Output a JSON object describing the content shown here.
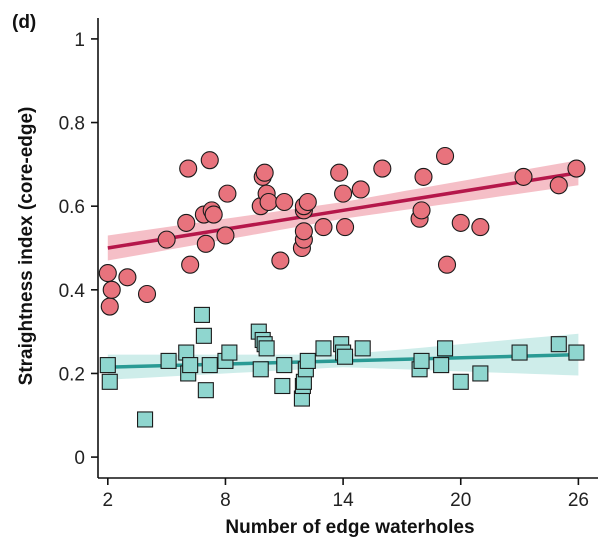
{
  "chart_data": {
    "type": "scatter",
    "panel_label": "(d)",
    "xlabel": "Number of edge waterholes",
    "ylabel": "Straightness index (core-edge)",
    "xlim": [
      1.5,
      27.0
    ],
    "ylim": [
      -0.05,
      1.05
    ],
    "x_ticks": [
      2,
      8,
      14,
      20,
      26
    ],
    "y_ticks": [
      0,
      0.2,
      0.4,
      0.6,
      0.8,
      1
    ],
    "y_tick_labels": [
      "0",
      "0.2",
      "0.4",
      "0.6",
      "0.8",
      "1"
    ],
    "grid": false,
    "series": [
      {
        "marker": "circle",
        "fill": "#e8737d",
        "stroke": "#1a1a1a",
        "line_color": "#b5174a",
        "band_color": "#f2aab4",
        "fit": {
          "x": [
            2,
            26
          ],
          "y": [
            0.5,
            0.68
          ]
        },
        "band_half_width": {
          "x": [
            2,
            14,
            26
          ],
          "y": [
            0.03,
            0.02,
            0.03
          ]
        },
        "points": [
          {
            "x": 2.0,
            "y": 0.44
          },
          {
            "x": 2.1,
            "y": 0.36
          },
          {
            "x": 2.2,
            "y": 0.4
          },
          {
            "x": 3.0,
            "y": 0.43
          },
          {
            "x": 4.0,
            "y": 0.39
          },
          {
            "x": 5.0,
            "y": 0.52
          },
          {
            "x": 6.0,
            "y": 0.56
          },
          {
            "x": 6.1,
            "y": 0.69
          },
          {
            "x": 6.2,
            "y": 0.46
          },
          {
            "x": 6.9,
            "y": 0.58
          },
          {
            "x": 7.0,
            "y": 0.51
          },
          {
            "x": 7.2,
            "y": 0.71
          },
          {
            "x": 7.3,
            "y": 0.59
          },
          {
            "x": 7.4,
            "y": 0.58
          },
          {
            "x": 8.0,
            "y": 0.53
          },
          {
            "x": 8.1,
            "y": 0.63
          },
          {
            "x": 9.8,
            "y": 0.6
          },
          {
            "x": 9.9,
            "y": 0.67
          },
          {
            "x": 10.0,
            "y": 0.68
          },
          {
            "x": 10.1,
            "y": 0.63
          },
          {
            "x": 10.2,
            "y": 0.61
          },
          {
            "x": 10.8,
            "y": 0.47
          },
          {
            "x": 11.0,
            "y": 0.61
          },
          {
            "x": 11.9,
            "y": 0.5
          },
          {
            "x": 12.0,
            "y": 0.52
          },
          {
            "x": 12.0,
            "y": 0.54
          },
          {
            "x": 12.0,
            "y": 0.59
          },
          {
            "x": 12.0,
            "y": 0.6
          },
          {
            "x": 12.2,
            "y": 0.61
          },
          {
            "x": 13.0,
            "y": 0.55
          },
          {
            "x": 13.8,
            "y": 0.68
          },
          {
            "x": 14.0,
            "y": 0.63
          },
          {
            "x": 14.1,
            "y": 0.55
          },
          {
            "x": 14.9,
            "y": 0.64
          },
          {
            "x": 16.0,
            "y": 0.69
          },
          {
            "x": 17.9,
            "y": 0.57
          },
          {
            "x": 18.0,
            "y": 0.59
          },
          {
            "x": 18.1,
            "y": 0.67
          },
          {
            "x": 19.2,
            "y": 0.72
          },
          {
            "x": 19.3,
            "y": 0.46
          },
          {
            "x": 20.0,
            "y": 0.56
          },
          {
            "x": 21.0,
            "y": 0.55
          },
          {
            "x": 23.2,
            "y": 0.67
          },
          {
            "x": 25.0,
            "y": 0.65
          },
          {
            "x": 25.9,
            "y": 0.69
          }
        ]
      },
      {
        "marker": "square",
        "fill": "#8fd6cf",
        "stroke": "#1a1a1a",
        "line_color": "#2a9a94",
        "band_color": "#bde7e3",
        "fit": {
          "x": [
            2,
            26
          ],
          "y": [
            0.215,
            0.245
          ]
        },
        "band_half_width": {
          "x": [
            2,
            14,
            26
          ],
          "y": [
            0.03,
            0.015,
            0.05
          ]
        },
        "points": [
          {
            "x": 2.0,
            "y": 0.22
          },
          {
            "x": 2.1,
            "y": 0.18
          },
          {
            "x": 3.9,
            "y": 0.09
          },
          {
            "x": 5.1,
            "y": 0.23
          },
          {
            "x": 6.0,
            "y": 0.25
          },
          {
            "x": 6.1,
            "y": 0.2
          },
          {
            "x": 6.2,
            "y": 0.22
          },
          {
            "x": 6.8,
            "y": 0.34
          },
          {
            "x": 6.9,
            "y": 0.29
          },
          {
            "x": 7.0,
            "y": 0.16
          },
          {
            "x": 7.2,
            "y": 0.22
          },
          {
            "x": 8.0,
            "y": 0.23
          },
          {
            "x": 8.2,
            "y": 0.25
          },
          {
            "x": 9.7,
            "y": 0.3
          },
          {
            "x": 9.8,
            "y": 0.21
          },
          {
            "x": 9.9,
            "y": 0.28
          },
          {
            "x": 10.0,
            "y": 0.27
          },
          {
            "x": 10.1,
            "y": 0.26
          },
          {
            "x": 10.9,
            "y": 0.17
          },
          {
            "x": 11.0,
            "y": 0.22
          },
          {
            "x": 11.9,
            "y": 0.14
          },
          {
            "x": 11.95,
            "y": 0.17
          },
          {
            "x": 12.0,
            "y": 0.18
          },
          {
            "x": 12.1,
            "y": 0.21
          },
          {
            "x": 12.2,
            "y": 0.23
          },
          {
            "x": 13.0,
            "y": 0.26
          },
          {
            "x": 13.9,
            "y": 0.27
          },
          {
            "x": 14.0,
            "y": 0.25
          },
          {
            "x": 14.1,
            "y": 0.24
          },
          {
            "x": 15.0,
            "y": 0.26
          },
          {
            "x": 17.9,
            "y": 0.21
          },
          {
            "x": 18.0,
            "y": 0.23
          },
          {
            "x": 19.0,
            "y": 0.22
          },
          {
            "x": 19.2,
            "y": 0.26
          },
          {
            "x": 20.0,
            "y": 0.18
          },
          {
            "x": 21.0,
            "y": 0.2
          },
          {
            "x": 23.0,
            "y": 0.25
          },
          {
            "x": 25.0,
            "y": 0.27
          },
          {
            "x": 25.9,
            "y": 0.25
          }
        ]
      }
    ]
  }
}
